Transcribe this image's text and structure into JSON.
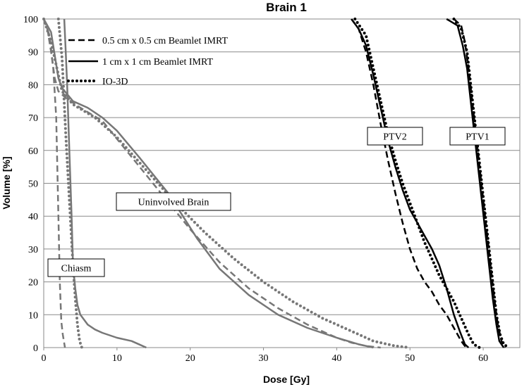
{
  "chart_data": {
    "type": "line",
    "title": "Brain 1",
    "xlabel": "Dose [Gy]",
    "ylabel": "Volume [%]",
    "xlim": [
      0,
      65
    ],
    "ylim": [
      0,
      100
    ],
    "xticks": [
      0,
      10,
      20,
      30,
      40,
      50,
      60
    ],
    "yticks": [
      0,
      10,
      20,
      30,
      40,
      50,
      60,
      70,
      80,
      90,
      100
    ],
    "grid": "horizontal",
    "legend_position": "top-left",
    "legend": [
      {
        "label": "0.5 cm x 0.5 cm Beamlet IMRT",
        "style": "dashed"
      },
      {
        "label": "1 cm x 1 cm Beamlet IMRT",
        "style": "solid"
      },
      {
        "label": "IO-3D",
        "style": "dotted"
      }
    ],
    "annotations": [
      "Uninvolved Brain",
      "Chiasm",
      "PTV2",
      "PTV1"
    ],
    "colors": {
      "brain_chiasm": "#777777",
      "ptv": "#000000"
    },
    "series": [
      {
        "group": "Uninvolved Brain",
        "style": "dashed",
        "points": [
          [
            0,
            100
          ],
          [
            0.5,
            97
          ],
          [
            1,
            90
          ],
          [
            1.5,
            82
          ],
          [
            2,
            78
          ],
          [
            3,
            76
          ],
          [
            5,
            73
          ],
          [
            8,
            69
          ],
          [
            12,
            58
          ],
          [
            16,
            47
          ],
          [
            20,
            36
          ],
          [
            24,
            26
          ],
          [
            28,
            18
          ],
          [
            32,
            12
          ],
          [
            36,
            7
          ],
          [
            40,
            3
          ],
          [
            42,
            1.5
          ],
          [
            44,
            0.5
          ],
          [
            46,
            0
          ]
        ]
      },
      {
        "group": "Uninvolved Brain",
        "style": "solid",
        "points": [
          [
            0,
            100
          ],
          [
            1,
            96
          ],
          [
            2,
            82
          ],
          [
            2.5,
            79
          ],
          [
            4,
            75
          ],
          [
            6,
            73
          ],
          [
            8,
            70
          ],
          [
            10,
            66
          ],
          [
            13,
            58
          ],
          [
            17,
            47
          ],
          [
            21,
            33
          ],
          [
            24,
            24
          ],
          [
            28,
            16
          ],
          [
            32,
            10
          ],
          [
            36,
            6
          ],
          [
            40,
            3
          ],
          [
            43,
            1
          ],
          [
            45,
            0
          ]
        ]
      },
      {
        "group": "Uninvolved Brain",
        "style": "dotted",
        "points": [
          [
            0,
            100
          ],
          [
            1,
            93
          ],
          [
            2,
            83
          ],
          [
            2.5,
            78
          ],
          [
            4,
            74
          ],
          [
            7,
            70
          ],
          [
            10,
            64
          ],
          [
            14,
            54
          ],
          [
            18,
            44
          ],
          [
            22,
            35
          ],
          [
            26,
            27
          ],
          [
            30,
            20
          ],
          [
            34,
            14
          ],
          [
            38,
            9
          ],
          [
            42,
            5
          ],
          [
            45,
            2
          ],
          [
            48,
            0.5
          ],
          [
            50,
            0
          ]
        ]
      },
      {
        "group": "Chiasm",
        "style": "dashed",
        "points": [
          [
            0,
            100
          ],
          [
            0.8,
            95
          ],
          [
            1.3,
            85
          ],
          [
            1.7,
            70
          ],
          [
            2,
            40
          ],
          [
            2.2,
            20
          ],
          [
            2.4,
            8
          ],
          [
            2.6,
            4
          ],
          [
            2.9,
            0
          ]
        ]
      },
      {
        "group": "Chiasm",
        "style": "solid",
        "points": [
          [
            2.8,
            100
          ],
          [
            3,
            90
          ],
          [
            3.2,
            80
          ],
          [
            3.5,
            60
          ],
          [
            3.8,
            40
          ],
          [
            4,
            25
          ],
          [
            4.3,
            18
          ],
          [
            4.6,
            13
          ],
          [
            5,
            10
          ],
          [
            6,
            7
          ],
          [
            7,
            5.5
          ],
          [
            8,
            4.5
          ],
          [
            10,
            3
          ],
          [
            12,
            2
          ],
          [
            13,
            1
          ],
          [
            14,
            0
          ]
        ]
      },
      {
        "group": "Chiasm",
        "style": "dotted",
        "points": [
          [
            2,
            100
          ],
          [
            2.5,
            88
          ],
          [
            3,
            65
          ],
          [
            3.5,
            45
          ],
          [
            4,
            25
          ],
          [
            4.3,
            15
          ],
          [
            4.6,
            7
          ],
          [
            4.9,
            2
          ],
          [
            5.2,
            0
          ]
        ]
      },
      {
        "group": "PTV2",
        "style": "dashed",
        "points": [
          [
            42,
            100
          ],
          [
            43,
            97
          ],
          [
            44,
            90
          ],
          [
            45,
            80
          ],
          [
            46,
            68
          ],
          [
            47,
            57
          ],
          [
            48,
            47
          ],
          [
            49,
            38
          ],
          [
            50,
            30
          ],
          [
            51,
            24
          ],
          [
            52,
            20
          ],
          [
            53,
            17
          ],
          [
            54,
            13
          ],
          [
            55,
            10
          ],
          [
            56,
            6
          ],
          [
            57,
            2
          ],
          [
            57.5,
            0.5
          ],
          [
            58,
            0
          ]
        ]
      },
      {
        "group": "PTV2",
        "style": "solid",
        "points": [
          [
            42,
            100
          ],
          [
            43,
            97
          ],
          [
            44,
            92
          ],
          [
            45,
            83
          ],
          [
            46,
            73
          ],
          [
            47,
            63
          ],
          [
            48,
            55
          ],
          [
            49,
            48
          ],
          [
            50,
            42
          ],
          [
            51,
            38
          ],
          [
            52,
            34
          ],
          [
            53,
            30
          ],
          [
            54,
            25
          ],
          [
            55,
            18
          ],
          [
            56,
            10
          ],
          [
            56.8,
            5
          ],
          [
            57.5,
            1
          ],
          [
            58,
            0
          ]
        ]
      },
      {
        "group": "PTV2",
        "style": "dotted",
        "points": [
          [
            42.5,
            100
          ],
          [
            44,
            95
          ],
          [
            45,
            85
          ],
          [
            46,
            75
          ],
          [
            47,
            65
          ],
          [
            48,
            57
          ],
          [
            49,
            50
          ],
          [
            50,
            44
          ],
          [
            51,
            38
          ],
          [
            52,
            32
          ],
          [
            53,
            27
          ],
          [
            54,
            22
          ],
          [
            55,
            18
          ],
          [
            56,
            14
          ],
          [
            57,
            9
          ],
          [
            58,
            4
          ],
          [
            58.7,
            1
          ],
          [
            59.5,
            0
          ]
        ]
      },
      {
        "group": "PTV1",
        "style": "dashed",
        "points": [
          [
            56,
            100
          ],
          [
            57,
            98
          ],
          [
            57.5,
            93
          ],
          [
            58,
            85
          ],
          [
            58.5,
            75
          ],
          [
            59,
            65
          ],
          [
            59.5,
            55
          ],
          [
            60,
            45
          ],
          [
            60.5,
            35
          ],
          [
            61,
            25
          ],
          [
            61.5,
            15
          ],
          [
            62,
            7
          ],
          [
            62.5,
            2
          ],
          [
            63,
            0
          ]
        ]
      },
      {
        "group": "PTV1",
        "style": "solid",
        "points": [
          [
            55,
            100
          ],
          [
            56.5,
            98
          ],
          [
            57.2,
            92
          ],
          [
            57.8,
            85
          ],
          [
            58.3,
            75
          ],
          [
            58.8,
            65
          ],
          [
            59.3,
            55
          ],
          [
            59.8,
            45
          ],
          [
            60.3,
            35
          ],
          [
            60.8,
            25
          ],
          [
            61.3,
            15
          ],
          [
            61.8,
            7
          ],
          [
            62.2,
            2
          ],
          [
            62.8,
            0
          ]
        ]
      },
      {
        "group": "PTV1",
        "style": "dotted",
        "points": [
          [
            56,
            100
          ],
          [
            57,
            97
          ],
          [
            57.8,
            90
          ],
          [
            58.3,
            80
          ],
          [
            58.8,
            70
          ],
          [
            59.3,
            60
          ],
          [
            59.8,
            50
          ],
          [
            60.3,
            40
          ],
          [
            60.8,
            30
          ],
          [
            61.3,
            20
          ],
          [
            61.8,
            10
          ],
          [
            62.3,
            4
          ],
          [
            62.8,
            1
          ],
          [
            63.5,
            0
          ]
        ]
      }
    ]
  }
}
